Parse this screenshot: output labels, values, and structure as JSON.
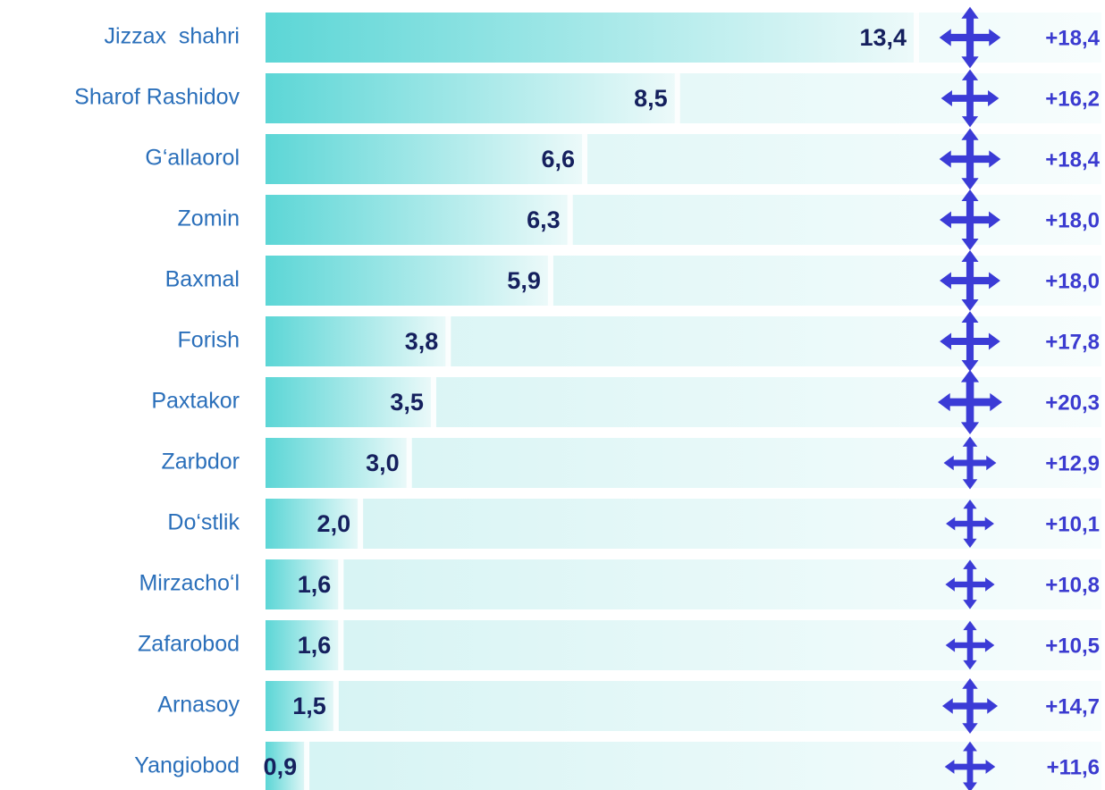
{
  "chart_data": {
    "type": "bar",
    "categories": [
      "Jizzax  shahri",
      "Sharof Rashidov",
      "G‘allaorol",
      "Zomin",
      "Baxmal",
      "Forish",
      "Paxtakor",
      "Zarbdor",
      "Do‘stlik",
      "Mirzacho‘l",
      "Zafarobod",
      "Arnasoy",
      "Yangiobod"
    ],
    "values": [
      13.4,
      8.5,
      6.6,
      6.3,
      5.9,
      3.8,
      3.5,
      3.0,
      2.0,
      1.6,
      1.6,
      1.5,
      0.9
    ],
    "value_labels": [
      "13,4",
      "8,5",
      "6,6",
      "6,3",
      "5,9",
      "3,8",
      "3,5",
      "3,0",
      "2,0",
      "1,6",
      "1,6",
      "1,5",
      "0,9"
    ],
    "color": "#5cd6d6",
    "growth": {
      "values": [
        18.4,
        16.2,
        18.4,
        18.0,
        18.0,
        17.8,
        20.3,
        12.9,
        10.1,
        10.8,
        10.5,
        14.7,
        11.6
      ],
      "value_labels": [
        "+18,4",
        "+16,2",
        "+18,4",
        "+18,0",
        "+18,0",
        "+17,8",
        "+20,3",
        "+12,9",
        "+10,1",
        "+10,8",
        "+10,5",
        "+14,7",
        "+11,6"
      ],
      "color": "#3b3bd6"
    }
  }
}
